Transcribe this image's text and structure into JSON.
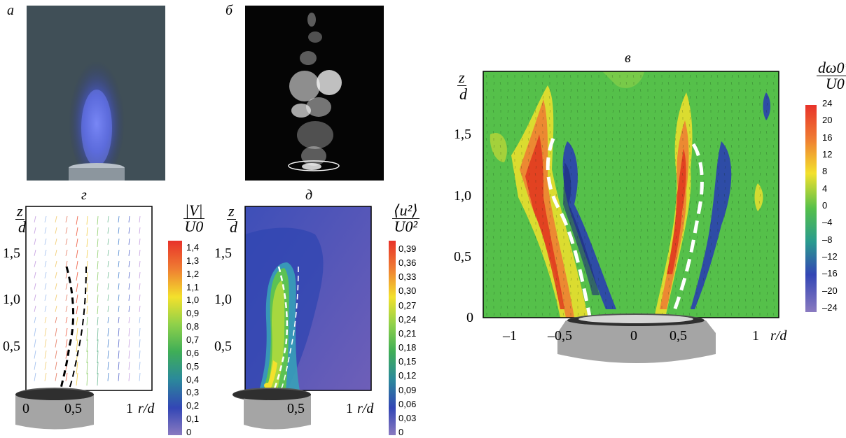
{
  "panels": {
    "a": {
      "letter": "а"
    },
    "b": {
      "letter": "б"
    },
    "v": {
      "letter": "в"
    },
    "g": {
      "letter": "г"
    },
    "d": {
      "letter": "д"
    }
  },
  "axes": {
    "z_num": "z",
    "z_den": "d",
    "r_label": "r/d"
  },
  "panel_g": {
    "y_ticks": [
      "1,5",
      "1,0",
      "0,5"
    ],
    "x_ticks": [
      "0",
      "0,5",
      "1"
    ],
    "colorbar_title_num": "|V|",
    "colorbar_title_den": "U0",
    "colorbar_labels": [
      "1,4",
      "1,3",
      "1,2",
      "1,1",
      "1,0",
      "0,9",
      "0,8",
      "0,7",
      "0,6",
      "0,5",
      "0,4",
      "0,3",
      "0,2",
      "0,1",
      "0"
    ]
  },
  "panel_d": {
    "y_ticks": [
      "1,5",
      "1,0",
      "0,5"
    ],
    "x_ticks": [
      "0",
      "0,5",
      "1"
    ],
    "colorbar_title_num": "⟨u²⟩",
    "colorbar_title_den": "U0²",
    "colorbar_labels": [
      "0,39",
      "0,36",
      "0,33",
      "0,30",
      "0,27",
      "0,24",
      "0,21",
      "0,18",
      "0,15",
      "0,12",
      "0,09",
      "0,06",
      "0,03",
      "0"
    ]
  },
  "panel_v": {
    "y_ticks": [
      "1,5",
      "1,0",
      "0,5",
      "0"
    ],
    "x_ticks": [
      "–1",
      "–0,5",
      "0",
      "0,5",
      "1"
    ],
    "colorbar_title_num": "dω0*",
    "colorbar_title_den": "U0",
    "colorbar_labels": [
      "24",
      "20",
      "16",
      "12",
      "8",
      "4",
      "0",
      "–4",
      "–8",
      "–12",
      "–16",
      "–20",
      "–24"
    ]
  },
  "colors": {
    "flame_blue": "#4a5ad8",
    "field_green": "#55c04a",
    "field_blue": "#2a3fb0",
    "field_red": "#e0361e",
    "field_yellow": "#f3e12c",
    "colorbar_top": "#e8322a",
    "colorbar_bottom": "#8a7ac0"
  }
}
